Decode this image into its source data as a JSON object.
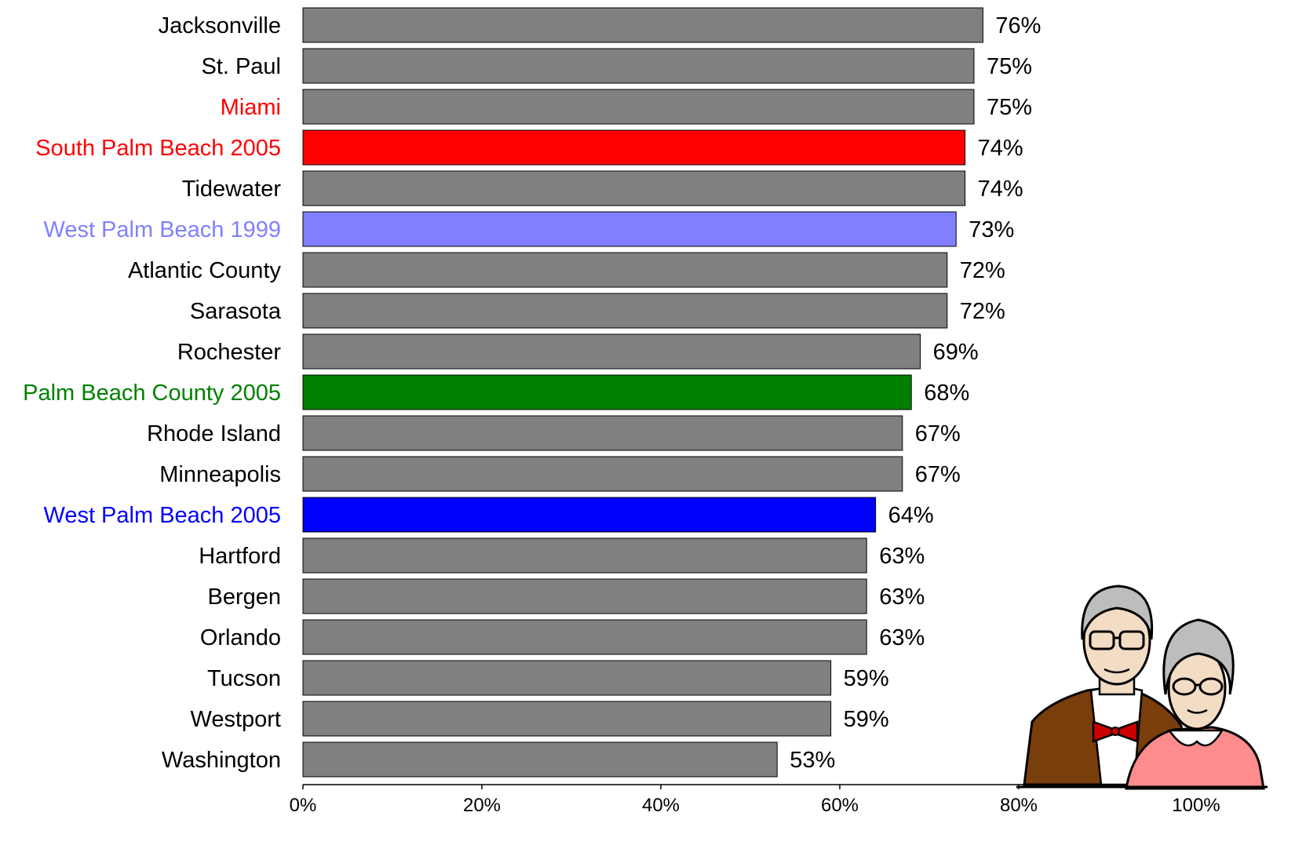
{
  "chart_data": {
    "type": "bar",
    "orientation": "horizontal",
    "title": "",
    "xlabel": "",
    "ylabel": "",
    "xlim": [
      0,
      100
    ],
    "grid": false,
    "legend": "none",
    "default_bar_color": "#808080",
    "default_label_color": "#000000",
    "categories": [
      "Jacksonville",
      "St. Paul",
      "Miami",
      "South Palm Beach 2005",
      "Tidewater",
      "West Palm Beach 1999",
      "Atlantic County",
      "Sarasota",
      "Rochester",
      "Palm Beach County 2005",
      "Rhode Island",
      "Minneapolis",
      "West Palm Beach 2005",
      "Hartford",
      "Bergen",
      "Orlando",
      "Tucson",
      "Westport",
      "Washington"
    ],
    "values": [
      76,
      75,
      75,
      74,
      74,
      73,
      72,
      72,
      69,
      68,
      67,
      67,
      64,
      63,
      63,
      63,
      59,
      59,
      53
    ],
    "value_labels": [
      "76%",
      "75%",
      "75%",
      "74%",
      "74%",
      "73%",
      "72%",
      "72%",
      "69%",
      "68%",
      "67%",
      "67%",
      "64%",
      "63%",
      "63%",
      "63%",
      "59%",
      "59%",
      "53%"
    ],
    "bar_colors": {
      "South Palm Beach 2005": "#ff0000",
      "West Palm Beach 1999": "#8080ff",
      "Palm Beach County 2005": "#008000",
      "West Palm Beach 2005": "#0000ff"
    },
    "label_colors": {
      "Miami": "#ff0000",
      "South Palm Beach 2005": "#ff0000",
      "West Palm Beach 1999": "#8080ff",
      "Palm Beach County 2005": "#008000",
      "West Palm Beach 2005": "#0000ff"
    },
    "x_ticks": [
      0,
      20,
      40,
      60,
      80,
      100
    ],
    "x_tick_labels": [
      "0%",
      "20%",
      "40%",
      "60%",
      "80%",
      "100%"
    ]
  },
  "illustration": {
    "icon": "elderly-couple-clipart",
    "colors": {
      "jacket": "#7a3d0c",
      "bowtie": "#cc0000",
      "sweater": "#ff8c8c",
      "skin": "#f2dcc4",
      "hair": "#bdbdbd"
    }
  }
}
